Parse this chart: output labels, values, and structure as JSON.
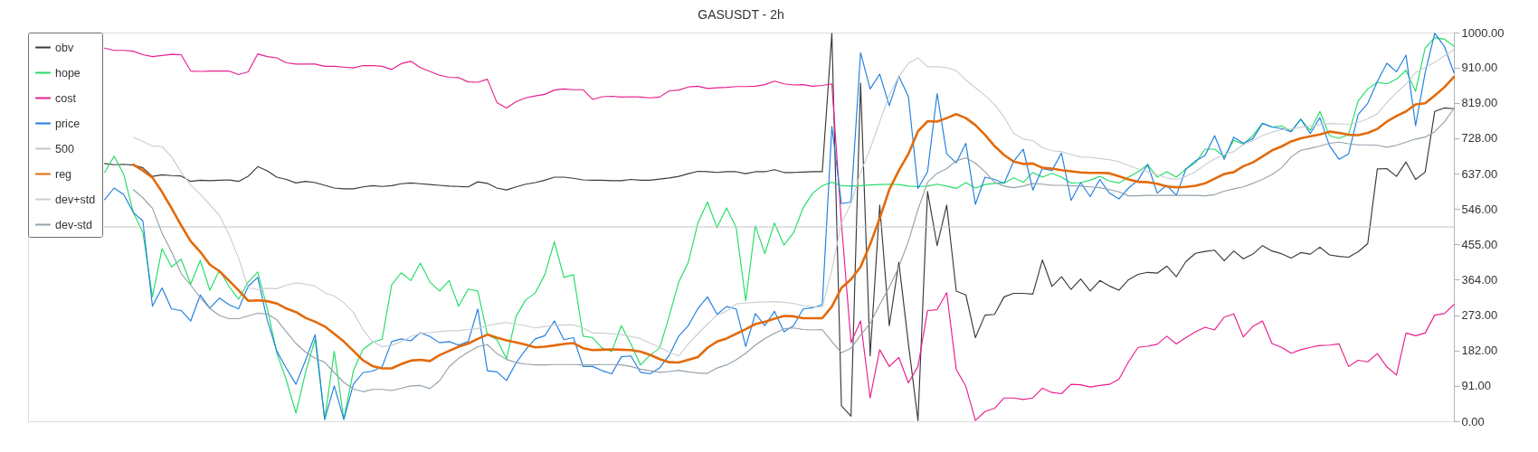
{
  "chart_data": {
    "type": "line",
    "title": "GASUSDT - 2h",
    "categories": [
      null,
      null,
      null,
      null,
      null,
      null,
      null,
      null,
      null,
      null,
      null,
      null,
      null,
      null,
      null,
      null,
      null,
      null,
      null,
      null,
      null,
      null,
      null,
      null,
      null,
      null,
      null,
      null,
      null,
      null,
      null,
      null,
      null,
      null,
      null,
      null,
      null,
      null,
      null,
      null,
      null,
      null,
      null,
      null,
      null,
      null,
      null,
      null,
      null,
      null,
      null,
      null,
      null,
      null,
      null,
      null,
      null,
      null,
      null,
      null,
      null,
      null,
      null,
      null,
      null,
      null,
      null,
      null,
      null,
      null,
      null,
      null,
      null,
      null,
      null,
      null,
      null,
      null,
      null,
      null,
      null,
      null,
      null,
      null,
      null,
      null,
      null,
      null,
      null,
      null,
      null,
      null,
      null,
      null,
      null,
      null,
      null,
      null,
      null,
      null,
      null,
      null,
      null,
      null,
      null,
      null,
      null,
      null,
      null,
      null,
      null,
      null,
      null,
      null,
      null,
      null,
      null,
      null,
      null,
      null,
      null,
      null,
      null,
      null,
      null,
      null,
      null,
      null,
      null,
      null,
      null,
      null,
      null,
      null,
      null,
      null,
      null,
      null,
      null,
      null,
      null,
      null,
      null,
      null,
      null,
      null,
      null,
      null,
      null,
      null
    ],
    "ylim": [
      0,
      1000
    ],
    "yticks": [
      {
        "value": 0,
        "label": "0.00"
      },
      {
        "value": 91,
        "label": "91.00"
      },
      {
        "value": 182,
        "label": "182.00"
      },
      {
        "value": 273,
        "label": "273.00"
      },
      {
        "value": 364,
        "label": "364.00"
      },
      {
        "value": 455,
        "label": "455.00"
      },
      {
        "value": 546,
        "label": "546.00"
      },
      {
        "value": 637,
        "label": "637.00"
      },
      {
        "value": 728,
        "label": "728.00"
      },
      {
        "value": 819,
        "label": "819.00"
      },
      {
        "value": 910,
        "label": "910.00"
      },
      {
        "value": 1000,
        "label": "1000.00"
      }
    ],
    "tick_labels": "y",
    "legend": "top left",
    "series": [
      {
        "name": "obv",
        "color": "#3a3a3a",
        "values": [
          null,
          null,
          null,
          null,
          null,
          null,
          null,
          null,
          663,
          660,
          661,
          659,
          652,
          630,
          634,
          632,
          631,
          617,
          620,
          619,
          620,
          621,
          617,
          630,
          655,
          644,
          628,
          622,
          613,
          617,
          614,
          607,
          600,
          598,
          598,
          603,
          606,
          604,
          606,
          611,
          613,
          611,
          609,
          607,
          605,
          604,
          603,
          616,
          612,
          600,
          595,
          603,
          610,
          614,
          620,
          628,
          628,
          625,
          621,
          620,
          620,
          619,
          619,
          622,
          620,
          620,
          623,
          626,
          630,
          637,
          643,
          642,
          640,
          642,
          642,
          637,
          642,
          642,
          647,
          640,
          640,
          641,
          642,
          642,
          998,
          40,
          13,
          870,
          168,
          556,
          246,
          409,
          199,
          2,
          591,
          452,
          556,
          335,
          325,
          215,
          273,
          275,
          320,
          329,
          329,
          327,
          415,
          347,
          372,
          339,
          366,
          335,
          362,
          348,
          337,
          364,
          378,
          383,
          381,
          399,
          372,
          411,
          432,
          437,
          440,
          413,
          438,
          418,
          430,
          452,
          438,
          431,
          420,
          434,
          430,
          448,
          428,
          424,
          422,
          436,
          457,
          649,
          650,
          630,
          667,
          622,
          641,
          797,
          806,
          804
        ]
      },
      {
        "name": "hope",
        "color": "#22dd66",
        "values": [
          null,
          null,
          null,
          null,
          null,
          null,
          null,
          null,
          640,
          682,
          635,
          537,
          486,
          320,
          444,
          397,
          417,
          353,
          414,
          337,
          389,
          347,
          314,
          358,
          384,
          290,
          176,
          105,
          21,
          126,
          211,
          5,
          180,
          5,
          130,
          185,
          203,
          211,
          351,
          382,
          362,
          407,
          358,
          335,
          362,
          296,
          340,
          335,
          223,
          210,
          161,
          270,
          312,
          330,
          377,
          462,
          370,
          377,
          219,
          215,
          188,
          180,
          246,
          199,
          145,
          170,
          188,
          270,
          358,
          409,
          510,
          564,
          498,
          549,
          498,
          310,
          503,
          431,
          510,
          453,
          485,
          549,
          587,
          606,
          615,
          606,
          605,
          606,
          608,
          609,
          610,
          609,
          605,
          604,
          605,
          610,
          605,
          599,
          614,
          600,
          609,
          612,
          613,
          626,
          615,
          640,
          628,
          638,
          628,
          613,
          614,
          620,
          630,
          618,
          613,
          628,
          642,
          660,
          628,
          642,
          628,
          649,
          665,
          700,
          700,
          681,
          723,
          713,
          735,
          767,
          757,
          760,
          746,
          777,
          748,
          797,
          735,
          728,
          738,
          824,
          855,
          872,
          868,
          880,
          903,
          849,
          960,
          987,
          983,
          965
        ]
      },
      {
        "name": "cost",
        "color": "#e91e8c",
        "values": [
          null,
          null,
          null,
          null,
          null,
          null,
          null,
          null,
          960,
          954,
          954,
          952,
          943,
          938,
          941,
          944,
          943,
          901,
          900,
          901,
          901,
          901,
          892,
          899,
          945,
          938,
          935,
          922,
          919,
          919,
          919,
          913,
          913,
          911,
          909,
          915,
          915,
          913,
          905,
          920,
          926,
          910,
          900,
          890,
          885,
          884,
          873,
          872,
          880,
          820,
          806,
          822,
          832,
          837,
          841,
          852,
          855,
          853,
          853,
          828,
          835,
          836,
          834,
          835,
          834,
          832,
          834,
          850,
          852,
          860,
          862,
          856,
          858,
          859,
          861,
          861,
          862,
          866,
          875,
          868,
          865,
          866,
          862,
          864,
          868,
          510,
          203,
          258,
          60,
          184,
          141,
          164,
          99,
          141,
          285,
          287,
          331,
          133,
          90,
          2,
          25,
          33,
          60,
          60,
          56,
          60,
          85,
          74,
          71,
          95,
          94,
          88,
          92,
          95,
          108,
          153,
          190,
          193,
          198,
          219,
          199,
          215,
          230,
          242,
          235,
          268,
          276,
          217,
          244,
          258,
          200,
          190,
          175,
          184,
          190,
          195,
          196,
          199,
          141,
          157,
          153,
          174,
          140,
          119,
          227,
          220,
          227,
          273,
          277,
          300
        ]
      },
      {
        "name": "price",
        "color": "#1f7fe0",
        "values": [
          null,
          null,
          null,
          null,
          null,
          null,
          null,
          null,
          570,
          600,
          583,
          537,
          515,
          296,
          343,
          289,
          285,
          258,
          325,
          291,
          317,
          300,
          289,
          347,
          370,
          260,
          180,
          136,
          95,
          157,
          223,
          5,
          91,
          5,
          95,
          125,
          129,
          140,
          205,
          212,
          207,
          228,
          218,
          202,
          205,
          196,
          205,
          289,
          130,
          127,
          105,
          150,
          184,
          212,
          220,
          258,
          210,
          215,
          141,
          141,
          130,
          122,
          166,
          168,
          126,
          122,
          137,
          170,
          219,
          246,
          290,
          320,
          275,
          295,
          289,
          192,
          277,
          246,
          283,
          230,
          246,
          289,
          292,
          300,
          758,
          560,
          564,
          948,
          855,
          893,
          812,
          888,
          835,
          599,
          642,
          843,
          688,
          665,
          715,
          558,
          628,
          622,
          612,
          669,
          700,
          595,
          650,
          645,
          690,
          568,
          614,
          578,
          622,
          587,
          572,
          600,
          620,
          661,
          587,
          607,
          581,
          649,
          670,
          684,
          735,
          674,
          731,
          715,
          727,
          766,
          757,
          753,
          745,
          777,
          740,
          781,
          709,
          674,
          688,
          789,
          818,
          874,
          921,
          899,
          942,
          760,
          897,
          998,
          965,
          897
        ]
      },
      {
        "name": "500",
        "color": "#c4c4c4",
        "values": [
          null,
          null,
          null,
          null,
          null,
          null,
          null,
          null,
          500,
          500,
          500,
          500,
          500,
          500,
          500,
          500,
          500,
          500,
          500,
          500,
          500,
          500,
          500,
          500,
          500,
          500,
          500,
          500,
          500,
          500,
          500,
          500,
          500,
          500,
          500,
          500,
          500,
          500,
          500,
          500,
          500,
          500,
          500,
          500,
          500,
          500,
          500,
          500,
          500,
          500,
          500,
          500,
          500,
          500,
          500,
          500,
          500,
          500,
          500,
          500,
          500,
          500,
          500,
          500,
          500,
          500,
          500,
          500,
          500,
          500,
          500,
          500,
          500,
          500,
          500,
          500,
          500,
          500,
          500,
          500,
          500,
          500,
          500,
          500,
          500,
          500,
          500,
          500,
          500,
          500,
          500,
          500,
          500,
          500,
          500,
          500,
          500,
          500,
          500,
          500,
          500,
          500,
          500,
          500,
          500,
          500,
          500,
          500,
          500,
          500,
          500,
          500,
          500,
          500,
          500,
          500,
          500,
          500,
          500,
          500,
          500,
          500,
          500,
          500,
          500,
          500,
          500,
          500,
          500,
          500,
          500,
          500,
          500,
          500,
          500,
          500,
          500,
          500,
          500,
          500,
          500,
          500,
          500,
          500,
          500,
          500,
          500,
          500,
          500,
          500
        ]
      },
      {
        "name": "reg",
        "color": "#e36a0a",
        "values": [
          null,
          null,
          null,
          null,
          null,
          null,
          null,
          null,
          null,
          null,
          null,
          660,
          645,
          627,
          590,
          548,
          504,
          463,
          436,
          403,
          386,
          362,
          337,
          310,
          311,
          309,
          303,
          290,
          281,
          266,
          256,
          244,
          225,
          205,
          181,
          157,
          142,
          136,
          136,
          147,
          156,
          158,
          155,
          170,
          181,
          192,
          200,
          212,
          223,
          215,
          208,
          203,
          197,
          190,
          192,
          195,
          199,
          201,
          188,
          183,
          184,
          185,
          184,
          183,
          179,
          171,
          160,
          152,
          151,
          158,
          165,
          189,
          205,
          213,
          225,
          237,
          250,
          256,
          264,
          271,
          270,
          265,
          265,
          265,
          295,
          343,
          365,
          397,
          455,
          522,
          596,
          645,
          688,
          746,
          772,
          771,
          780,
          790,
          780,
          762,
          737,
          708,
          685,
          668,
          662,
          663,
          652,
          650,
          646,
          643,
          640,
          639,
          639,
          638,
          630,
          622,
          616,
          615,
          611,
          604,
          602,
          603,
          606,
          612,
          624,
          636,
          641,
          656,
          666,
          681,
          697,
          707,
          720,
          728,
          733,
          738,
          745,
          742,
          737,
          736,
          742,
          752,
          771,
          785,
          797,
          815,
          818,
          838,
          859,
          886
        ]
      },
      {
        "name": "dev+std",
        "color": "#c9ced3",
        "values": [
          null,
          null,
          null,
          null,
          null,
          null,
          null,
          null,
          null,
          null,
          null,
          731,
          720,
          708,
          707,
          680,
          641,
          608,
          584,
          557,
          530,
          480,
          420,
          343,
          339,
          342,
          341,
          350,
          356,
          353,
          348,
          331,
          322,
          305,
          280,
          236,
          205,
          192,
          195,
          205,
          218,
          226,
          228,
          231,
          233,
          233,
          236,
          238,
          246,
          251,
          254,
          250,
          246,
          240,
          244,
          247,
          248,
          248,
          240,
          227,
          227,
          225,
          223,
          218,
          213,
          201,
          190,
          178,
          168,
          199,
          225,
          250,
          273,
          283,
          302,
          304,
          306,
          307,
          308,
          306,
          303,
          297,
          295,
          294,
          390,
          510,
          560,
          640,
          700,
          770,
          840,
          887,
          921,
          935,
          912,
          912,
          910,
          902,
          878,
          858,
          838,
          815,
          783,
          740,
          726,
          722,
          704,
          696,
          694,
          686,
          680,
          679,
          676,
          673,
          668,
          658,
          649,
          642,
          634,
          626,
          622,
          630,
          642,
          660,
          675,
          686,
          694,
          711,
          722,
          735,
          744,
          750,
          752,
          756,
          760,
          763,
          766,
          765,
          764,
          769,
          778,
          791,
          820,
          845,
          868,
          897,
          910,
          923,
          940,
          956
        ]
      },
      {
        "name": "dev-std",
        "color": "#95a1aa",
        "values": [
          null,
          null,
          null,
          null,
          null,
          null,
          null,
          null,
          null,
          null,
          null,
          596,
          575,
          548,
          484,
          436,
          380,
          350,
          318,
          290,
          272,
          264,
          264,
          271,
          278,
          276,
          261,
          230,
          200,
          178,
          162,
          152,
          125,
          100,
          83,
          76,
          82,
          82,
          79,
          85,
          91,
          92,
          84,
          104,
          140,
          162,
          178,
          192,
          197,
          174,
          159,
          151,
          147,
          145,
          145,
          146,
          146,
          146,
          145,
          145,
          146,
          146,
          145,
          141,
          134,
          130,
          126,
          128,
          131,
          127,
          124,
          123,
          137,
          145,
          158,
          175,
          196,
          213,
          226,
          238,
          240,
          236,
          235,
          236,
          205,
          176,
          188,
          222,
          252,
          300,
          345,
          397,
          463,
          545,
          615,
          638,
          650,
          670,
          678,
          664,
          642,
          615,
          605,
          601,
          605,
          612,
          610,
          607,
          607,
          606,
          605,
          603,
          601,
          596,
          590,
          580,
          580,
          581,
          581,
          581,
          581,
          581,
          581,
          580,
          583,
          592,
          598,
          603,
          612,
          622,
          635,
          652,
          680,
          697,
          702,
          708,
          715,
          718,
          714,
          711,
          711,
          710,
          705,
          710,
          718,
          726,
          731,
          745,
          770,
          804
        ]
      }
    ]
  }
}
